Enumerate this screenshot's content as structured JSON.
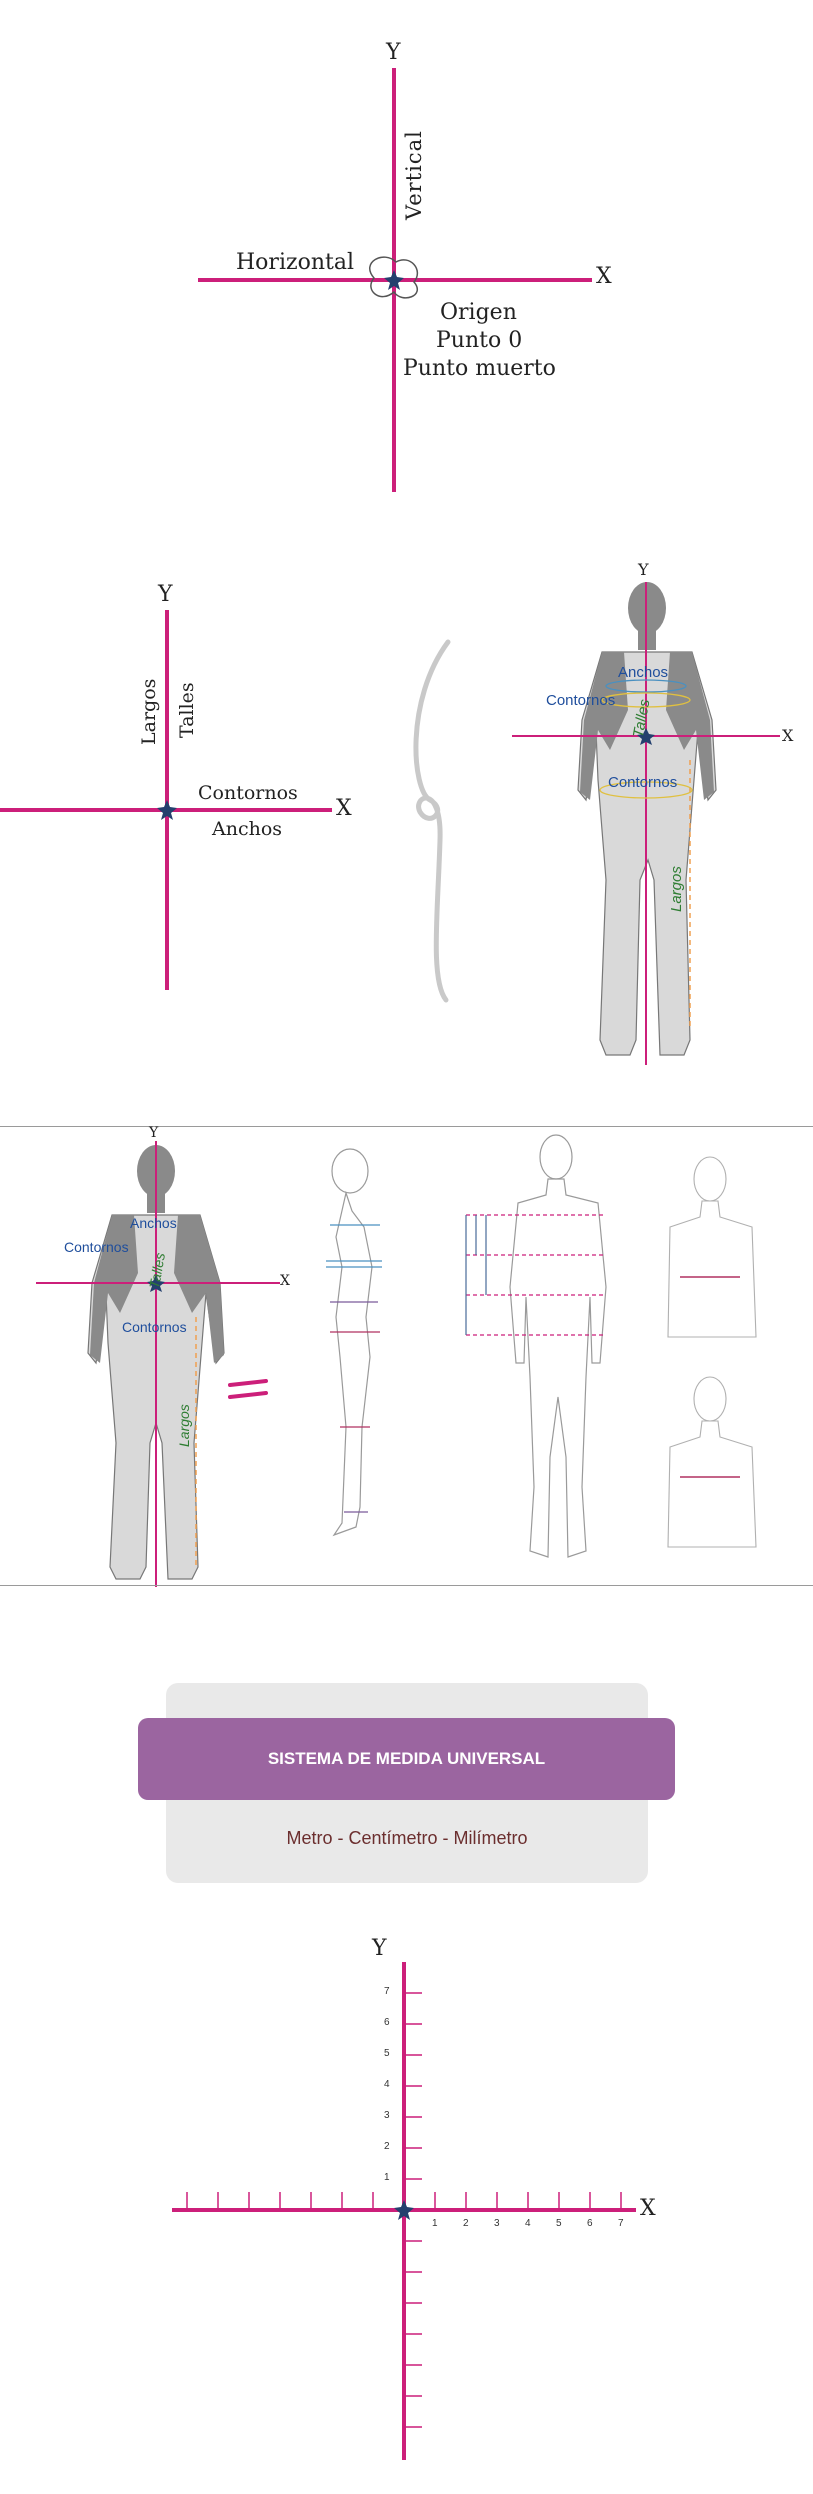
{
  "section1": {
    "axis_y": "Y",
    "axis_x": "X",
    "vertical": "Vertical",
    "horizontal": "Horizontal",
    "origin_lines": [
      "Origen",
      "Punto 0",
      "Punto muerto"
    ]
  },
  "section2": {
    "axis_y": "Y",
    "axis_x": "X",
    "largos": "Largos",
    "talles": "Talles",
    "contornos": "Contornos",
    "anchos": "Anchos",
    "figure": {
      "axis_y": "Y",
      "axis_x": "X",
      "anchos": "Anchos",
      "contornos_left": "Contornos",
      "talles": "Talles",
      "contornos_bottom": "Contornos",
      "largos": "Largos"
    }
  },
  "section3": {
    "figure": {
      "axis_y": "Y",
      "axis_x": "X",
      "anchos": "Anchos",
      "contornos_left": "Contornos",
      "talles": "Talles",
      "contornos_bottom": "Contornos",
      "largos": "Largos"
    },
    "equals": "="
  },
  "section4": {
    "title": "SISTEMA DE MEDIDA UNIVERSAL",
    "units": "Metro - Centímetro - Milímetro"
  },
  "section5": {
    "axis_y": "Y",
    "axis_x": "X",
    "y_ticks": [
      "1",
      "2",
      "3",
      "4",
      "5",
      "6",
      "7"
    ],
    "x_ticks": [
      "1",
      "2",
      "3",
      "4",
      "5",
      "6",
      "7"
    ]
  },
  "colors": {
    "axis": "#cc1f7a",
    "label_blue": "#1f4e9c",
    "label_green": "#2e7d32",
    "banner": "#9b65a0",
    "card": "#e9e9e9"
  }
}
